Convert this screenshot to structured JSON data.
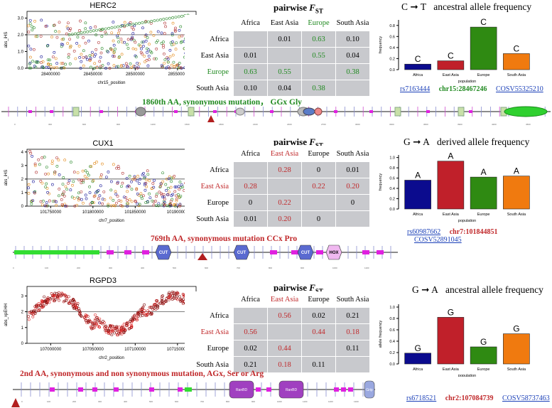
{
  "fst_header": {
    "title_main": "pairwise ",
    "title_f": "F",
    "title_sub": "ST"
  },
  "populations": [
    "Africa",
    "East Asia",
    "Europe",
    "South Asia"
  ],
  "panels": [
    {
      "gene": "HERC2",
      "accent": "#218a21",
      "highlight_index": 2,
      "ihs": {
        "ylabel": "abs_iHS",
        "xlabel": "chr15_position",
        "xticks": [
          "28400000",
          "28450000",
          "28500000",
          "28550000"
        ],
        "yticks": [
          "0.0",
          "1.0",
          "2.0",
          "3.0"
        ],
        "ylim": [
          0,
          3.4
        ],
        "threshold": 2
      },
      "fst": [
        [
          "",
          "0.01",
          "0.63",
          "0.10"
        ],
        [
          "0.01",
          "",
          "0.55",
          "0.04"
        ],
        [
          "0.63",
          "0.55",
          "",
          "0.38"
        ],
        [
          "0.10",
          "0.04",
          "0.38",
          ""
        ]
      ],
      "freq": {
        "change_from": "C",
        "change_to": "T",
        "label": "ancestral allele frequency",
        "allele": "C",
        "ylabel": "frequency",
        "xlabel": "population",
        "yticks": [
          "0.0",
          "0.2",
          "0.4",
          "0.6",
          "0.8"
        ],
        "ylim": [
          0,
          0.9
        ],
        "values": [
          0.1,
          0.16,
          0.77,
          0.29
        ],
        "colors": [
          "#0b0b8e",
          "#c0202a",
          "#2f8a12",
          "#f07a0f"
        ]
      },
      "links": {
        "rs": "rs7163444",
        "pos": "chr15:28467246",
        "cosv": "COSV55325210"
      },
      "annotation": "1860th AA, synonymous mutation， GGx Gly"
    },
    {
      "gene": "CUX1",
      "accent": "#c0282a",
      "highlight_index": 1,
      "ihs": {
        "ylabel": "abs_iHS",
        "xlabel": "chr7_position",
        "xticks": [
          "101750000",
          "101800000",
          "101850000",
          "101900000"
        ],
        "yticks": [
          "0",
          "1",
          "2",
          "3",
          "4"
        ],
        "ylim": [
          0,
          4.2
        ],
        "threshold": 2
      },
      "fst": [
        [
          "",
          "0.28",
          "0",
          "0.01"
        ],
        [
          "0.28",
          "",
          "0.22",
          "0.20"
        ],
        [
          "0",
          "0.22",
          "",
          "0"
        ],
        [
          "0.01",
          "0.20",
          "0",
          ""
        ]
      ],
      "freq": {
        "change_from": "G",
        "change_to": "A",
        "label": "derived allele frequency",
        "allele": "A",
        "ylabel": "frequency",
        "xlabel": "population",
        "yticks": [
          "0.0",
          "0.2",
          "0.4",
          "0.6",
          "0.8",
          "1.0"
        ],
        "ylim": [
          0,
          1.05
        ],
        "values": [
          0.56,
          0.93,
          0.62,
          0.64
        ],
        "colors": [
          "#0b0b8e",
          "#c0202a",
          "#2f8a12",
          "#f07a0f"
        ]
      },
      "links": {
        "rs": "rs60987662",
        "pos": "chr7:101844851",
        "cosv": "COSV52891045"
      },
      "annotation": "769th AA, synonymous mutation CCx Pro",
      "domains": [
        "CUT",
        "CUT",
        "CUT",
        "HOX"
      ]
    },
    {
      "gene": "RGPD3",
      "accent": "#c0282a",
      "highlight_index": 1,
      "ihs": {
        "ylabel": "abs_xpEHH",
        "xlabel": "chr2_position",
        "xticks": [
          "107000000",
          "107050000",
          "107100000",
          "107150000"
        ],
        "yticks": [
          "0",
          "1",
          "2",
          "3"
        ],
        "ylim": [
          0,
          3.6
        ],
        "threshold": 2
      },
      "fst": [
        [
          "",
          "0.56",
          "0.02",
          "0.21"
        ],
        [
          "0.56",
          "",
          "0.44",
          "0.18"
        ],
        [
          "0.02",
          "0.44",
          "",
          "0.11"
        ],
        [
          "0.21",
          "0.18",
          "0.11",
          ""
        ]
      ],
      "freq": {
        "change_from": "G",
        "change_to": "A",
        "label": "ancestral allele frequency",
        "allele": "G",
        "ylabel": "allele frequency",
        "xlabel": "population",
        "yticks": [
          "0.0",
          "0.2",
          "0.4",
          "0.6",
          "0.8",
          "1.0"
        ],
        "ylim": [
          0,
          1.05
        ],
        "values": [
          0.19,
          0.82,
          0.3,
          0.53
        ],
        "colors": [
          "#0b0b8e",
          "#c0202a",
          "#2f8a12",
          "#f07a0f"
        ]
      },
      "links": {
        "rs": "rs6718521",
        "pos": "chr2:107084739",
        "cosv": "COSV58737463"
      },
      "annotation": "2nd AA, synonymous  and non synonymous mutation, AGx, Ser or Arg",
      "domains": [
        "RanBD",
        "RanBD",
        "Grip"
      ]
    }
  ],
  "chart_data": [
    {
      "type": "bar",
      "title": "C → T ancestral allele frequency",
      "categories": [
        "Africa",
        "East Asia",
        "Europe",
        "South Asia"
      ],
      "values": [
        0.1,
        0.16,
        0.77,
        0.29
      ],
      "xlabel": "population",
      "ylabel": "frequency",
      "ylim": [
        0,
        0.9
      ]
    },
    {
      "type": "bar",
      "title": "G → A derived allele frequency",
      "categories": [
        "Africa",
        "East Asia",
        "Europe",
        "South Asia"
      ],
      "values": [
        0.56,
        0.93,
        0.62,
        0.64
      ],
      "xlabel": "population",
      "ylabel": "frequency",
      "ylim": [
        0,
        1.05
      ]
    },
    {
      "type": "bar",
      "title": "G → A ancestral allele frequency",
      "categories": [
        "Africa",
        "East Asia",
        "Europe",
        "South Asia"
      ],
      "values": [
        0.19,
        0.82,
        0.3,
        0.53
      ],
      "xlabel": "population",
      "ylabel": "allele frequency",
      "ylim": [
        0,
        1.05
      ]
    },
    {
      "type": "scatter",
      "title": "HERC2",
      "xlabel": "chr15_position",
      "ylabel": "abs_iHS",
      "ylim": [
        0,
        3.4
      ]
    },
    {
      "type": "scatter",
      "title": "CUX1",
      "xlabel": "chr7_position",
      "ylabel": "abs_iHS",
      "ylim": [
        0,
        4.2
      ]
    },
    {
      "type": "scatter",
      "title": "RGPD3",
      "xlabel": "chr2_position",
      "ylabel": "abs_xpEHH",
      "ylim": [
        0,
        3.6
      ]
    },
    {
      "type": "table",
      "title": "pairwise FST",
      "rows": [
        "Africa",
        "East Asia",
        "Europe",
        "South Asia"
      ]
    }
  ]
}
